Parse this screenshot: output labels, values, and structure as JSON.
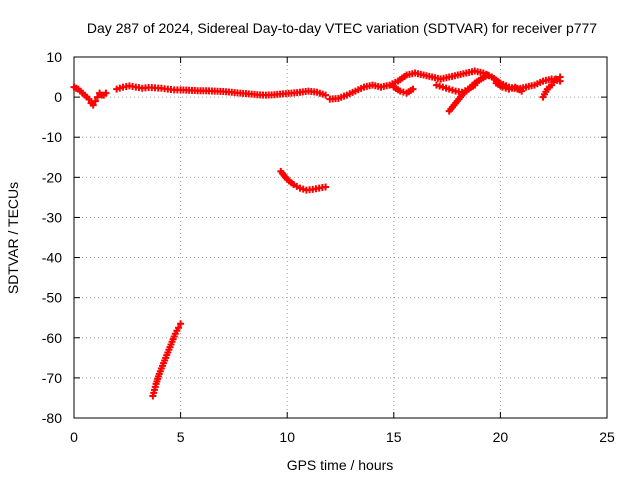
{
  "chart_data": {
    "type": "scatter",
    "title": "Day 287 of 2024, Sidereal Day-to-day VTEC variation (SDTVAR) for receiver p777",
    "xlabel": "GPS time / hours",
    "ylabel": "SDTVAR / TECUs",
    "xlim": [
      0,
      25
    ],
    "ylim": [
      -80,
      10
    ],
    "xticks": [
      0,
      5,
      10,
      15,
      20,
      25
    ],
    "yticks": [
      10,
      0,
      -10,
      -20,
      -30,
      -40,
      -50,
      -60,
      -70,
      -80
    ],
    "grid": true,
    "marker": "plus",
    "color": "#ff0000",
    "series": [
      {
        "name": "segment-1",
        "x": [
          0,
          0.1,
          0.2,
          0.3,
          0.4,
          0.5,
          0.6,
          0.7,
          0.8,
          0.9,
          1.0,
          1.1,
          1.2,
          1.3,
          1.4,
          1.5
        ],
        "y": [
          2.5,
          2.2,
          2,
          1.5,
          1,
          0.5,
          0,
          -0.5,
          -1.5,
          -2,
          -1,
          0,
          1,
          0.5,
          0.5,
          1
        ]
      },
      {
        "name": "segment-2",
        "x": [
          2.0,
          2.3,
          2.6,
          2.9,
          3.2,
          3.5,
          3.8,
          4.1,
          4.4,
          4.7,
          5.0,
          5.4,
          5.8,
          6.2,
          6.6,
          7.0,
          7.4,
          7.8,
          8.2,
          8.6,
          9.0,
          9.4,
          9.8,
          10.2,
          10.6,
          11.0,
          11.4,
          11.8
        ],
        "y": [
          2,
          2.5,
          2.8,
          2.5,
          2.2,
          2.4,
          2.3,
          2.2,
          2,
          1.8,
          1.8,
          1.7,
          1.6,
          1.6,
          1.5,
          1.4,
          1.2,
          1,
          0.8,
          0.6,
          0.5,
          0.6,
          0.8,
          1,
          1.2,
          1.5,
          1.2,
          0.5
        ]
      },
      {
        "name": "segment-3",
        "x": [
          12.0,
          12.4,
          12.8,
          13.2,
          13.6,
          14.0,
          14.4,
          14.8,
          15.2,
          15.6,
          16.0,
          16.4,
          16.8,
          17.2,
          17.6,
          18.0,
          18.4,
          18.8,
          19.2,
          19.6,
          20.0,
          20.4,
          20.8,
          21.2,
          21.6,
          22.0,
          22.4,
          22.8
        ],
        "y": [
          -0.5,
          -0.3,
          0.5,
          1.5,
          2.5,
          3,
          2.5,
          3,
          4,
          5.5,
          6,
          5.5,
          5,
          4.5,
          5,
          5.5,
          6,
          6.5,
          6,
          5,
          3.5,
          2.5,
          2,
          2.5,
          3,
          4,
          4.5,
          4
        ]
      },
      {
        "name": "segment-4",
        "x": [
          15.0,
          15.3,
          15.6,
          15.9
        ],
        "y": [
          2.5,
          1.5,
          1,
          2
        ]
      },
      {
        "name": "segment-5",
        "x": [
          17.0,
          17.3,
          17.6,
          17.9,
          18.2,
          18.5,
          18.8,
          19.1,
          19.4
        ],
        "y": [
          3,
          2.5,
          2,
          1.5,
          1.2,
          2,
          3.5,
          4.5,
          5.5
        ]
      },
      {
        "name": "segment-6",
        "x": [
          17.6,
          17.9,
          18.2,
          18.5,
          18.8
        ],
        "y": [
          -3.5,
          -1.5,
          0.5,
          2,
          3
        ]
      },
      {
        "name": "segment-7",
        "x": [
          19.8,
          20.1,
          20.4,
          20.7,
          21.0
        ],
        "y": [
          3.5,
          2.5,
          2,
          2.5,
          1.5
        ]
      },
      {
        "name": "segment-8",
        "x": [
          22.0,
          22.2,
          22.4,
          22.6,
          22.8
        ],
        "y": [
          0,
          2,
          3,
          4.5,
          5
        ]
      },
      {
        "name": "segment-9",
        "x": [
          9.7,
          10.0,
          10.3,
          10.6,
          10.9,
          11.2,
          11.5,
          11.8
        ],
        "y": [
          -18.5,
          -20.5,
          -21.8,
          -22.7,
          -23.2,
          -23.0,
          -22.7,
          -22.4
        ]
      },
      {
        "name": "segment-10",
        "x": [
          3.7,
          3.85,
          4.0,
          4.15,
          4.3,
          4.45,
          4.6,
          4.75,
          4.9,
          5.0
        ],
        "y": [
          -74.5,
          -71.5,
          -69,
          -67,
          -65,
          -63,
          -61,
          -59,
          -57.5,
          -56.5
        ]
      }
    ]
  }
}
